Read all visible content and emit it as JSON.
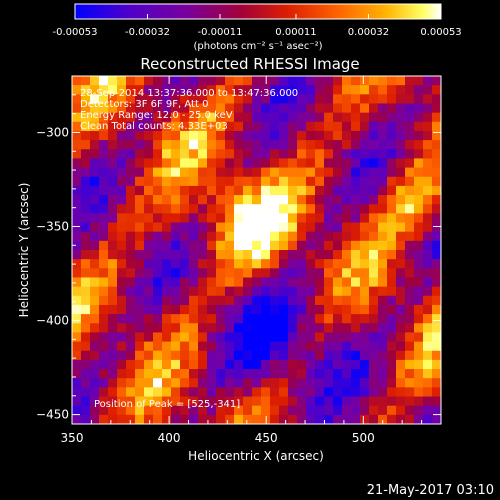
{
  "chart_data": {
    "type": "heatmap",
    "title": "Reconstructed RHESSI Image",
    "xlabel": "Heliocentric X (arcsec)",
    "ylabel": "Heliocentric Y (arcsec)",
    "xlim": [
      350,
      540
    ],
    "ylim": [
      -455,
      -270
    ],
    "xticks": [
      350,
      400,
      450,
      500
    ],
    "yticks": [
      -300,
      -350,
      -400,
      -450
    ],
    "colorbar": {
      "range": [
        -0.00053,
        0.00053
      ],
      "tick_labels": [
        "-0.00053",
        "-0.00032",
        "-0.00011",
        "0.00011",
        "0.00032",
        "0.00053"
      ],
      "tick_values": [
        -0.00053,
        -0.00032,
        -0.00011,
        0.00011,
        0.00032,
        0.00053
      ],
      "units": "(photons cm⁻² s⁻¹ asec⁻²)",
      "colormap": [
        "#0000ff",
        "#5000c8",
        "#7800a0",
        "#a0003c",
        "#dc1e00",
        "#ff6400",
        "#ffb400",
        "#ffff64",
        "#ffffff"
      ]
    },
    "annotations": [
      "28-Sep-2014 13:37:36.000 to 13:47:36.000",
      "Detectors: 3F 6F 9F, Att 0",
      "Energy Range: 12.0 - 25.0 keV",
      "Clean     Total counts: 4.33E+03"
    ],
    "peak_label": "Position of Peak = [525,-341]",
    "peak": [
      525,
      -341
    ],
    "grid": false
  },
  "timestamp": "21-May-2017 03:10"
}
